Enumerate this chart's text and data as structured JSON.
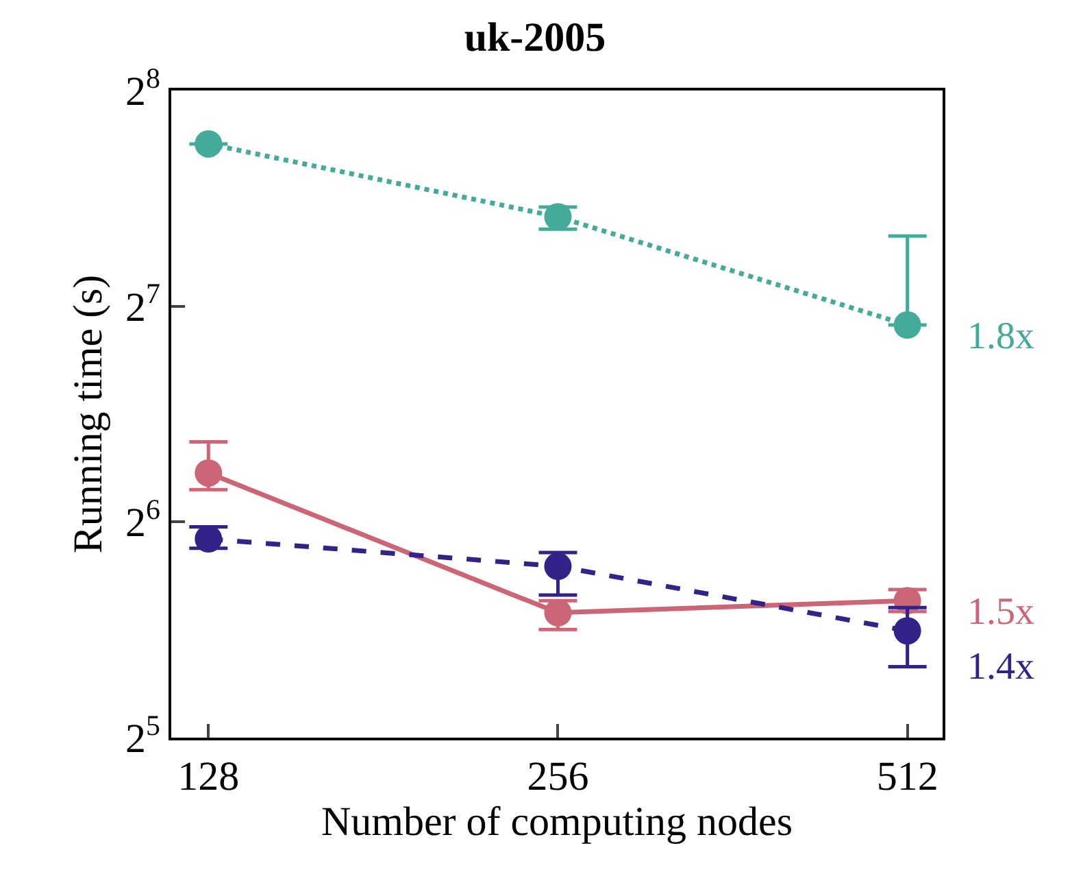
{
  "chart_data": {
    "type": "line",
    "title": "uk-2005",
    "xlabel": "Number of computing nodes",
    "ylabel": "Running time (s)",
    "x": [
      128,
      256,
      512
    ],
    "series": [
      {
        "color": "#44aa99",
        "line_style": "dotted",
        "values": [
          215.6,
          170.6,
          120.5
        ],
        "errors": [
          [
            215.6,
            215.6
          ],
          [
            164,
            176
          ],
          [
            120.5,
            160.4
          ]
        ]
      },
      {
        "color": "#cc6677",
        "line_style": "solid",
        "values": [
          74.9,
          47.8,
          49.7
        ],
        "errors": [
          [
            71.0,
            82.8
          ],
          [
            45.3,
            49.7
          ],
          [
            48.0,
            51.5
          ]
        ]
      },
      {
        "color": "#332288",
        "line_style": "dashed",
        "values": [
          60.6,
          55.5,
          45.1
        ],
        "errors": [
          [
            58.8,
            63.0
          ],
          [
            50.6,
            58.0
          ],
          [
            40.2,
            48.6
          ]
        ]
      }
    ],
    "annotations": [
      "1.8x",
      "1.5x",
      "1.4x"
    ],
    "log": "xy",
    "xlim": [
      118.9,
      549
    ],
    "ylim": [
      32,
      256
    ],
    "xticks": [
      128,
      256,
      512
    ],
    "yticks": [
      {
        "value": 32,
        "label": "2$^{5}$"
      },
      {
        "value": 64,
        "label": "2$^{6}$"
      },
      {
        "value": 128,
        "label": "2$^{7}$"
      },
      {
        "value": 256,
        "label": "2$^{8}$"
      }
    ],
    "marker": "circle"
  }
}
